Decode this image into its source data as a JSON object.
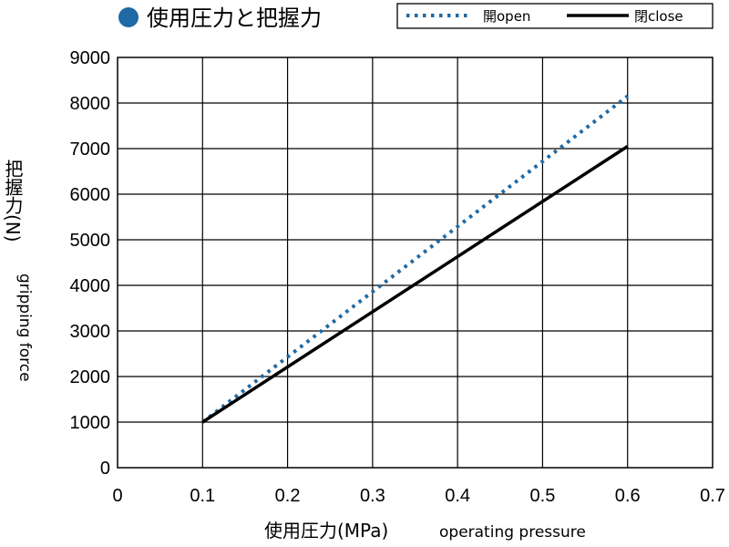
{
  "chart_data": {
    "type": "line",
    "title": "使用圧力と把握力",
    "xlabel": "使用圧力(MPa)",
    "xlabel_en": "operating pressure",
    "ylabel": "把握力(N)",
    "ylabel_en": "gripping force",
    "xlim": [
      0,
      0.7
    ],
    "ylim": [
      0,
      9000
    ],
    "x_ticks": [
      "0",
      "0.1",
      "0.2",
      "0.3",
      "0.4",
      "0.5",
      "0.6",
      "0.7"
    ],
    "y_ticks": [
      "0",
      "1000",
      "2000",
      "3000",
      "4000",
      "5000",
      "6000",
      "7000",
      "8000",
      "9000"
    ],
    "grid": true,
    "legend_position": "top-right",
    "series": [
      {
        "name": "開open",
        "style": "dotted",
        "color": "#1f6aa5",
        "x": [
          0.1,
          0.6
        ],
        "y": [
          1000,
          8150
        ]
      },
      {
        "name": "閉close",
        "style": "solid",
        "color": "#000000",
        "x": [
          0.1,
          0.6
        ],
        "y": [
          1000,
          7050
        ]
      }
    ]
  },
  "title_marker_color": "#1f6aa5"
}
